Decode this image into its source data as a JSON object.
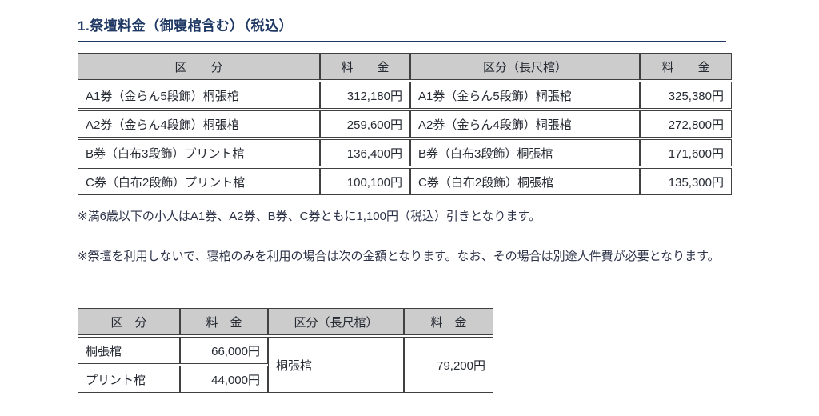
{
  "page": {
    "title": "1.祭壇料金（御寝棺含む）（税込）"
  },
  "colors": {
    "title_navy": "#1f3864",
    "body_text": "#262a33",
    "table_border": "#404040",
    "header_background": "#cccccc"
  },
  "altar_price_table": {
    "headers": [
      "区　　分",
      "料　　金",
      "区分（長尺棺）",
      "料　　金"
    ],
    "rows": [
      [
        "A1券（金らん5段飾）桐張棺",
        "312,180円",
        "A1券（金らん5段飾）桐張棺",
        "325,380円"
      ],
      [
        "A2券（金らん4段飾）桐張棺",
        "259,600円",
        "A2券（金らん4段飾）桐張棺",
        "272,800円"
      ],
      [
        "B券（白布3段飾）プリント棺",
        "136,400円",
        "B券（白布3段飾）桐張棺",
        "171,600円"
      ],
      [
        "C券（白布2段飾）プリント棺",
        "100,100円",
        "C券（白布2段飾）桐張棺",
        "135,300円"
      ]
    ]
  },
  "notes": {
    "child_discount": "※満6歳以下の小人はA1券、A2券、B券、C券ともに1,100円（税込）引きとなります。",
    "coffin_only": "※祭壇を利用しないで、寝棺のみを利用の場合は次の金額となります。なお、その場合は別途人件費が必要となります。"
  },
  "coffin_only_table": {
    "headers": [
      "区　分",
      "料　金",
      "区分（長尺棺）",
      "料　金"
    ],
    "rows": [
      {
        "label": "桐張棺",
        "price": "66,000円"
      },
      {
        "label": "プリント棺",
        "price": "44,000円"
      }
    ],
    "long_coffin_merged": {
      "label": "桐張棺",
      "price": "79,200円"
    }
  }
}
